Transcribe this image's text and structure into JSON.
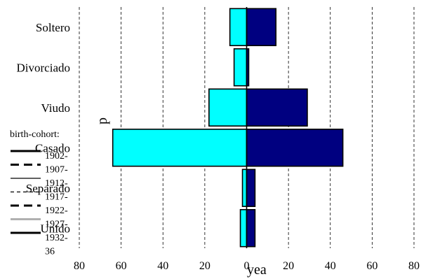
{
  "chart_data": {
    "type": "bar",
    "orientation": "horizontal",
    "stacked_diverging": true,
    "categories": [
      "Soltero",
      "Divorciado",
      "Viudo",
      "Casado",
      "Separado",
      "Unido"
    ],
    "series": [
      {
        "color": "#00ffff",
        "values": [
          -8,
          -6,
          -18,
          -64,
          -2,
          -3
        ]
      },
      {
        "color": "#000080",
        "values": [
          14,
          1,
          29,
          46,
          4,
          4
        ]
      }
    ],
    "xticks": [
      80,
      60,
      40,
      20,
      0,
      20,
      40,
      60,
      80
    ],
    "xlim": [
      -80,
      80
    ],
    "xlabel": "yea",
    "ylabel": "p",
    "grid": "vertical-dashed",
    "legend": {
      "title": "birth-cohort:",
      "position": "left",
      "items": [
        {
          "label": "1902-",
          "style": "solid-thick",
          "color": "#000000"
        },
        {
          "label": "1907-",
          "style": "dashed-thick",
          "color": "#000000"
        },
        {
          "label": "1912-",
          "style": "solid-thin",
          "color": "#000000"
        },
        {
          "label": "1917-",
          "style": "dashed-thin",
          "color": "#000000"
        },
        {
          "label": "1922-",
          "style": "dashed-thick",
          "color": "#000000"
        },
        {
          "label": "1927-",
          "style": "solid-thick",
          "color": "#b0b0b0"
        },
        {
          "label": "1932-",
          "style": "solid-thick",
          "color": "#000000"
        },
        {
          "label": "36",
          "style": "none",
          "color": "#000000"
        }
      ]
    }
  }
}
